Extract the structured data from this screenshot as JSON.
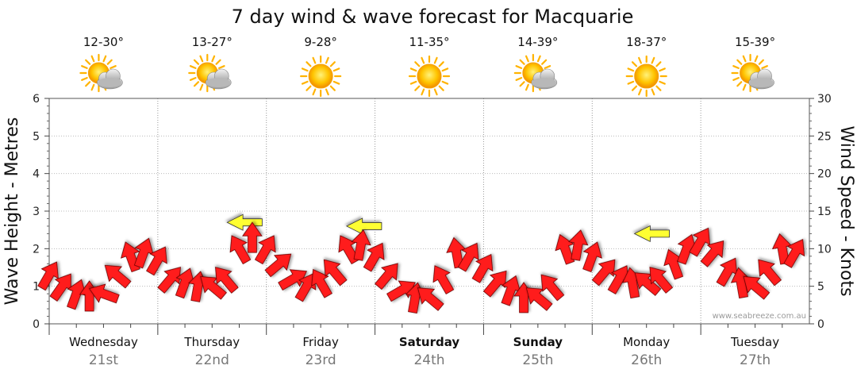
{
  "chart_data": {
    "type": "line",
    "title": "7 day wind & wave forecast for Macquarie",
    "ylabel_left": "Wave Height - Metres",
    "ylabel_right": "Wind Speed - Knots",
    "ylim_left": [
      0,
      6
    ],
    "ylim_right": [
      0,
      30
    ],
    "yticks_left": [
      "0",
      "1",
      "2",
      "3",
      "4",
      "5",
      "6"
    ],
    "yticks_right": [
      "0",
      "5",
      "10",
      "15",
      "20",
      "25",
      "30"
    ],
    "grid": true,
    "watermark": "www.seabreeze.com.au",
    "days": [
      {
        "name": "Wednesday",
        "date": "21st",
        "temp": "12-30°",
        "icon": "partly-cloudy-icon",
        "bold": false
      },
      {
        "name": "Thursday",
        "date": "22nd",
        "temp": "13-27°",
        "icon": "partly-cloudy-icon",
        "bold": false
      },
      {
        "name": "Friday",
        "date": "23rd",
        "temp": "9-28°",
        "icon": "sun-icon",
        "bold": false
      },
      {
        "name": "Saturday",
        "date": "24th",
        "temp": "11-35°",
        "icon": "sun-icon",
        "bold": true
      },
      {
        "name": "Sunday",
        "date": "25th",
        "temp": "14-39°",
        "icon": "partly-cloudy-icon",
        "bold": true
      },
      {
        "name": "Monday",
        "date": "26th",
        "temp": "18-37°",
        "icon": "sun-icon",
        "bold": false
      },
      {
        "name": "Tuesday",
        "date": "27th",
        "temp": "15-39°",
        "icon": "partly-cloudy-icon",
        "bold": false
      }
    ],
    "series": [
      {
        "name": "wind",
        "color": "#ff1a1a",
        "gust_color": "#ffff33",
        "x_day": [
          0.0,
          0.12,
          0.25,
          0.37,
          0.5,
          0.62,
          0.75,
          0.87,
          1.0,
          1.12,
          1.25,
          1.37,
          1.5,
          1.62,
          1.75,
          1.87,
          2.0,
          2.12,
          2.25,
          2.37,
          2.5,
          2.62,
          2.75,
          2.87,
          3.0,
          3.12,
          3.25,
          3.37,
          3.5,
          3.62,
          3.75,
          3.87,
          4.0,
          4.12,
          4.25,
          4.37,
          4.5,
          4.62,
          4.75,
          4.87,
          5.0,
          5.12,
          5.25,
          5.37,
          5.5,
          5.62,
          5.75,
          5.87,
          6.0,
          6.12,
          6.25,
          6.37,
          6.5,
          6.62,
          6.75,
          6.87
        ],
        "knots": [
          6.5,
          5,
          4,
          3.7,
          4,
          6.5,
          9,
          9.5,
          8.5,
          6,
          5.5,
          5,
          5,
          6,
          10,
          11.5,
          10,
          8,
          6,
          5,
          5.5,
          7,
          10,
          10.5,
          9,
          6.5,
          4.5,
          3.5,
          3.5,
          6,
          9.5,
          9,
          7.5,
          5.5,
          4.5,
          3.5,
          3.5,
          5,
          10,
          10.5,
          9,
          7,
          6,
          5.5,
          5.5,
          6,
          8,
          10,
          11,
          9.5,
          7,
          5.5,
          5,
          7,
          10,
          9.5
        ],
        "direction_deg": [
          300,
          305,
          290,
          270,
          200,
          220,
          250,
          290,
          300,
          310,
          290,
          280,
          220,
          230,
          240,
          270,
          300,
          320,
          330,
          300,
          240,
          230,
          240,
          280,
          300,
          310,
          330,
          280,
          220,
          240,
          260,
          300,
          300,
          310,
          290,
          270,
          220,
          230,
          250,
          280,
          290,
          310,
          300,
          260,
          220,
          230,
          250,
          290,
          300,
          310,
          300,
          260,
          220,
          230,
          260,
          300
        ],
        "gusts": [
          {
            "x_day": 1.8,
            "knots": 13.5
          },
          {
            "x_day": 2.9,
            "knots": 13
          },
          {
            "x_day": 5.55,
            "knots": 12
          }
        ]
      }
    ]
  }
}
